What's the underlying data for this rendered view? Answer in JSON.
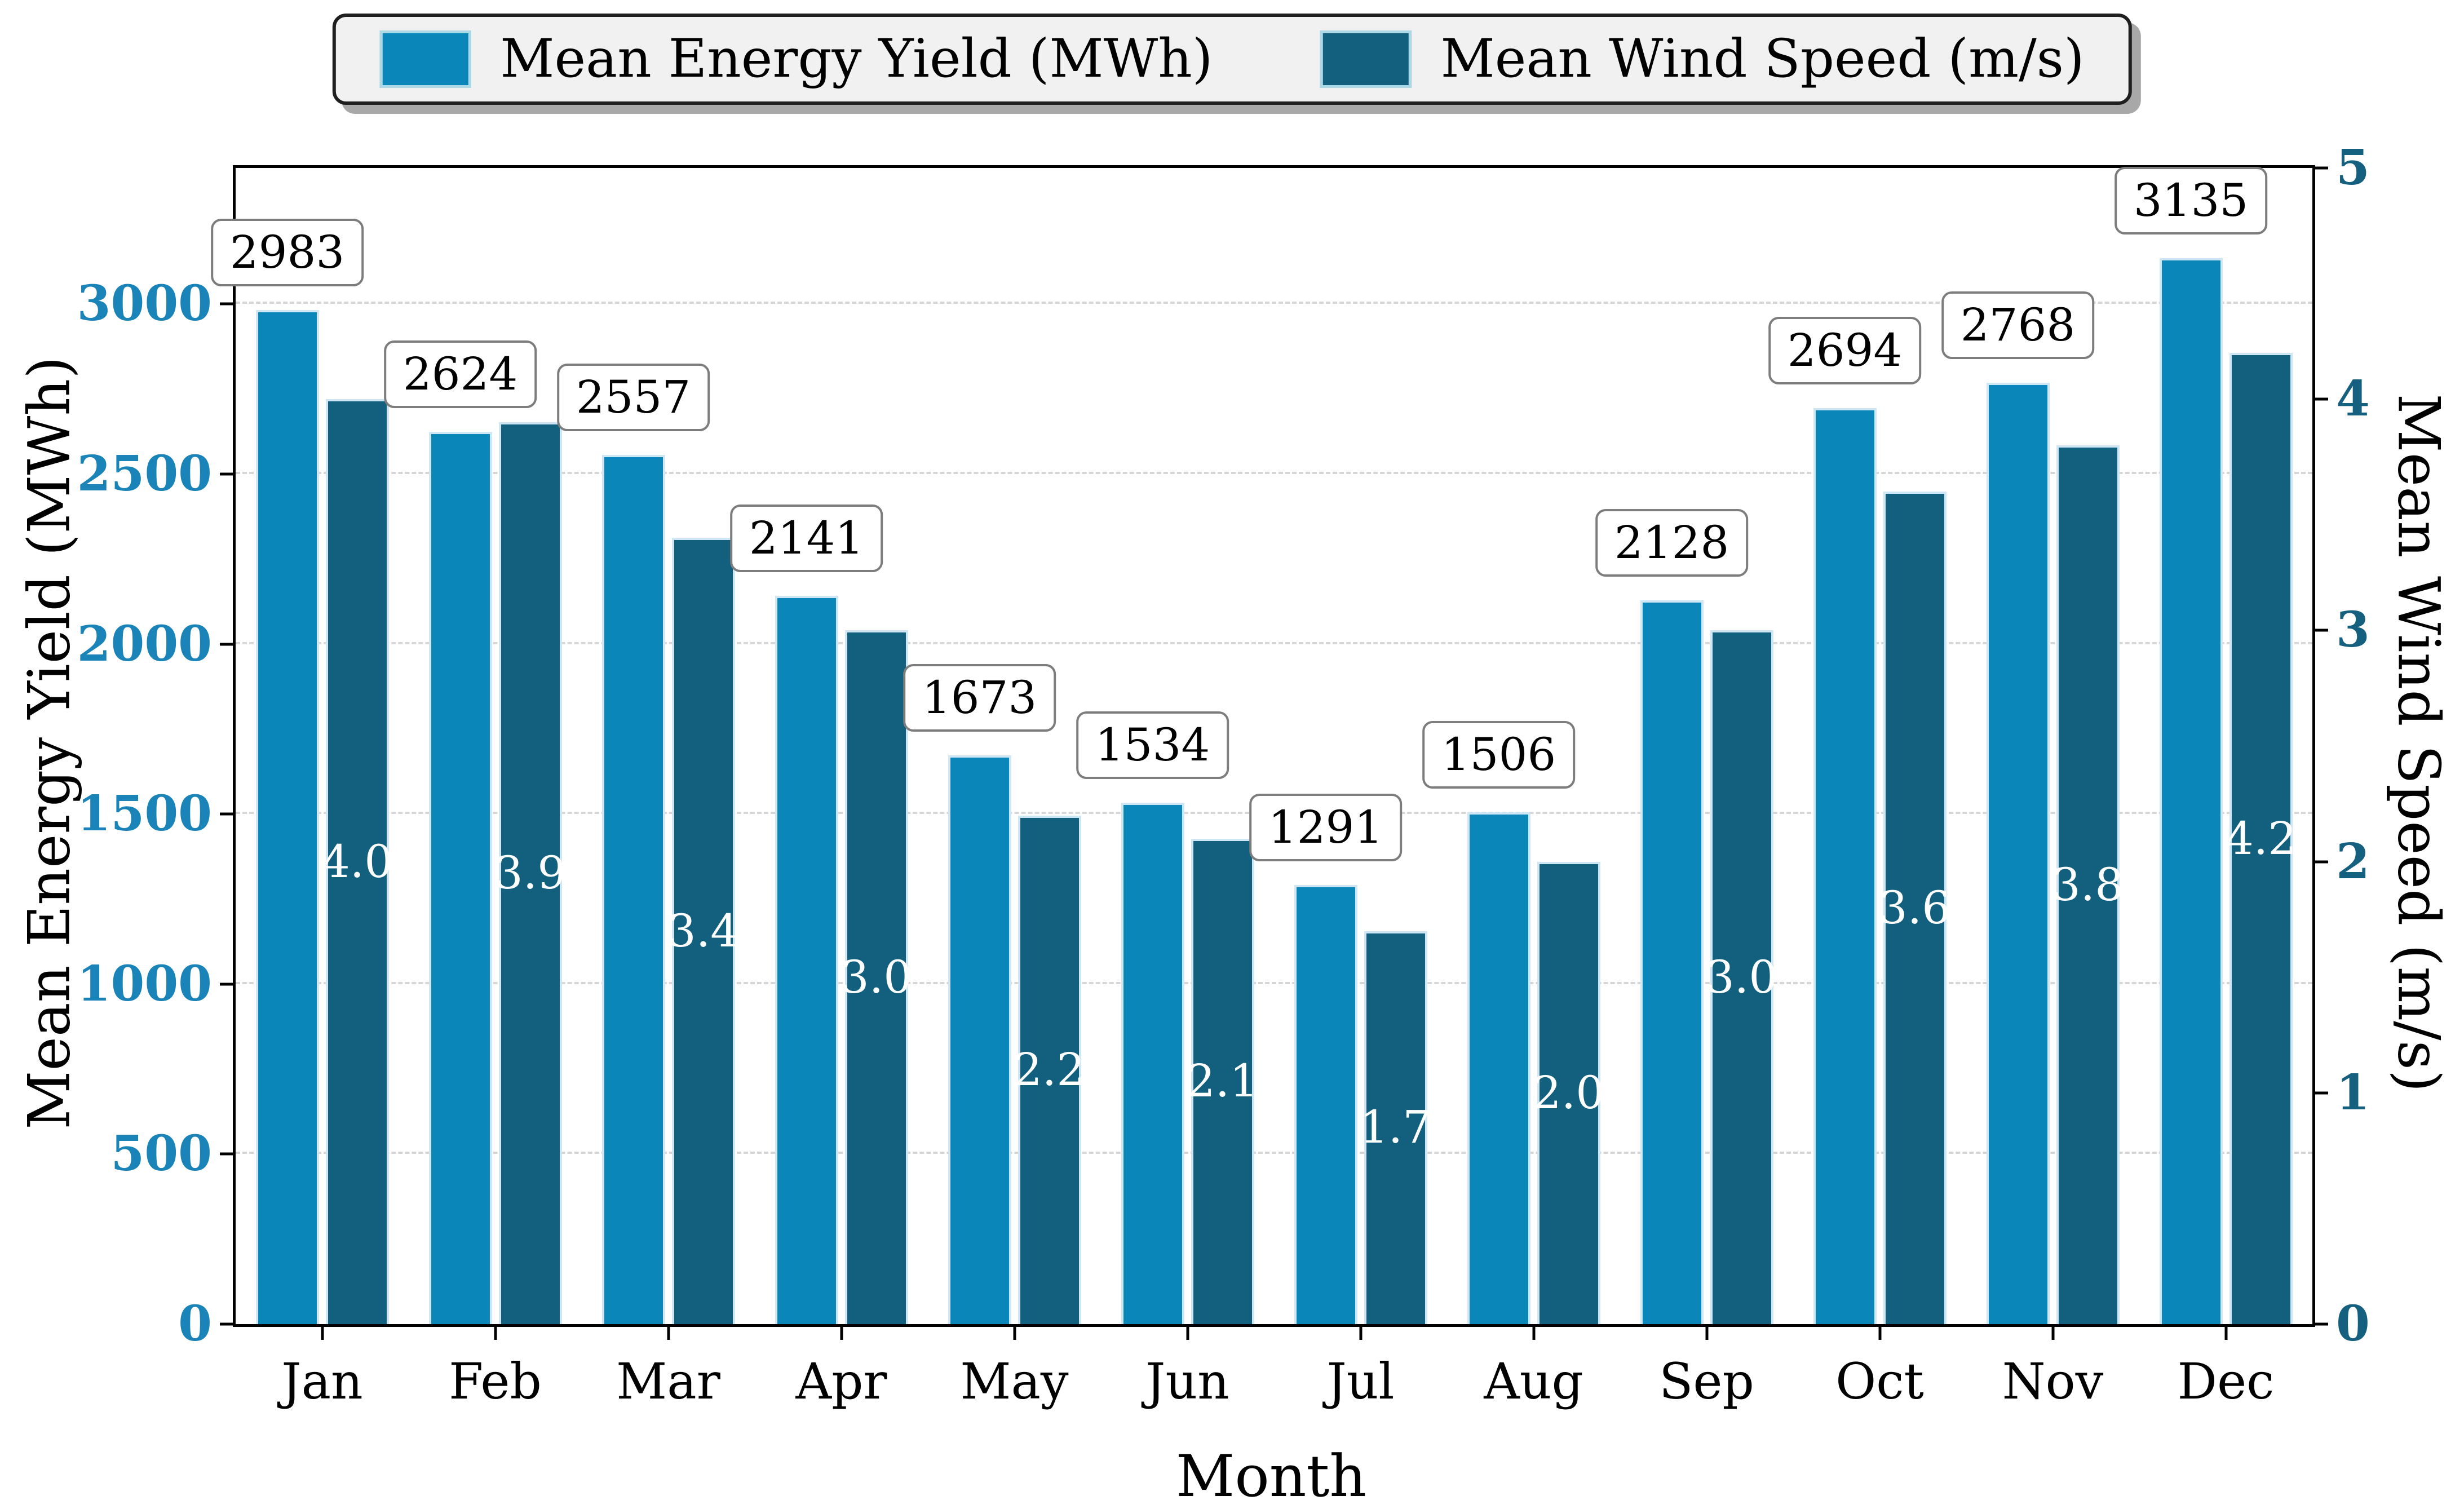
{
  "legend": {
    "items": [
      {
        "label": "Mean Energy Yield (MWh)",
        "color": "#0b86b8"
      },
      {
        "label": "Mean Wind Speed (m/s)",
        "color": "#12607e"
      }
    ]
  },
  "axes": {
    "left": {
      "label": "Mean Energy Yield (MWh)",
      "ticks": [
        0,
        500,
        1000,
        1500,
        2000,
        2500,
        3000
      ],
      "tick_color": "#1a84b8"
    },
    "right": {
      "label": "Mean Wind Speed (m/s)",
      "ticks": [
        0,
        1,
        2,
        3,
        4,
        5
      ],
      "tick_color": "#16607f"
    },
    "x": {
      "label": "Month"
    }
  },
  "chart_data": {
    "type": "bar",
    "categories": [
      "Jan",
      "Feb",
      "Mar",
      "Apr",
      "May",
      "Jun",
      "Jul",
      "Aug",
      "Sep",
      "Oct",
      "Nov",
      "Dec"
    ],
    "series": [
      {
        "name": "Mean Energy Yield (MWh)",
        "axis": "left",
        "color": "#0b86b8",
        "values": [
          2983,
          2624,
          2557,
          2141,
          1673,
          1534,
          1291,
          1506,
          2128,
          2694,
          2768,
          3135
        ],
        "labels": [
          "2983",
          "2624",
          "2557",
          "2141",
          "1673",
          "1534",
          "1291",
          "1506",
          "2128",
          "2694",
          "2768",
          "3135"
        ]
      },
      {
        "name": "Mean Wind Speed (m/s)",
        "axis": "right",
        "color": "#12607e",
        "values": [
          4.0,
          3.9,
          3.4,
          3.0,
          2.2,
          2.1,
          1.7,
          2.0,
          3.0,
          3.6,
          3.8,
          4.2
        ],
        "labels": [
          "4.0",
          "3.9",
          "3.4",
          "3.0",
          "2.2",
          "2.1",
          "1.7",
          "2.0",
          "3.0",
          "3.6",
          "3.8",
          "4.2"
        ]
      }
    ],
    "xlabel": "Month",
    "ylabel_left": "Mean Energy Yield (MWh)",
    "ylabel_right": "Mean Wind Speed (m/s)",
    "ylim_left": [
      0,
      3400
    ],
    "ylim_right": [
      0,
      5
    ],
    "grid": true,
    "legend_position": "top-center"
  }
}
